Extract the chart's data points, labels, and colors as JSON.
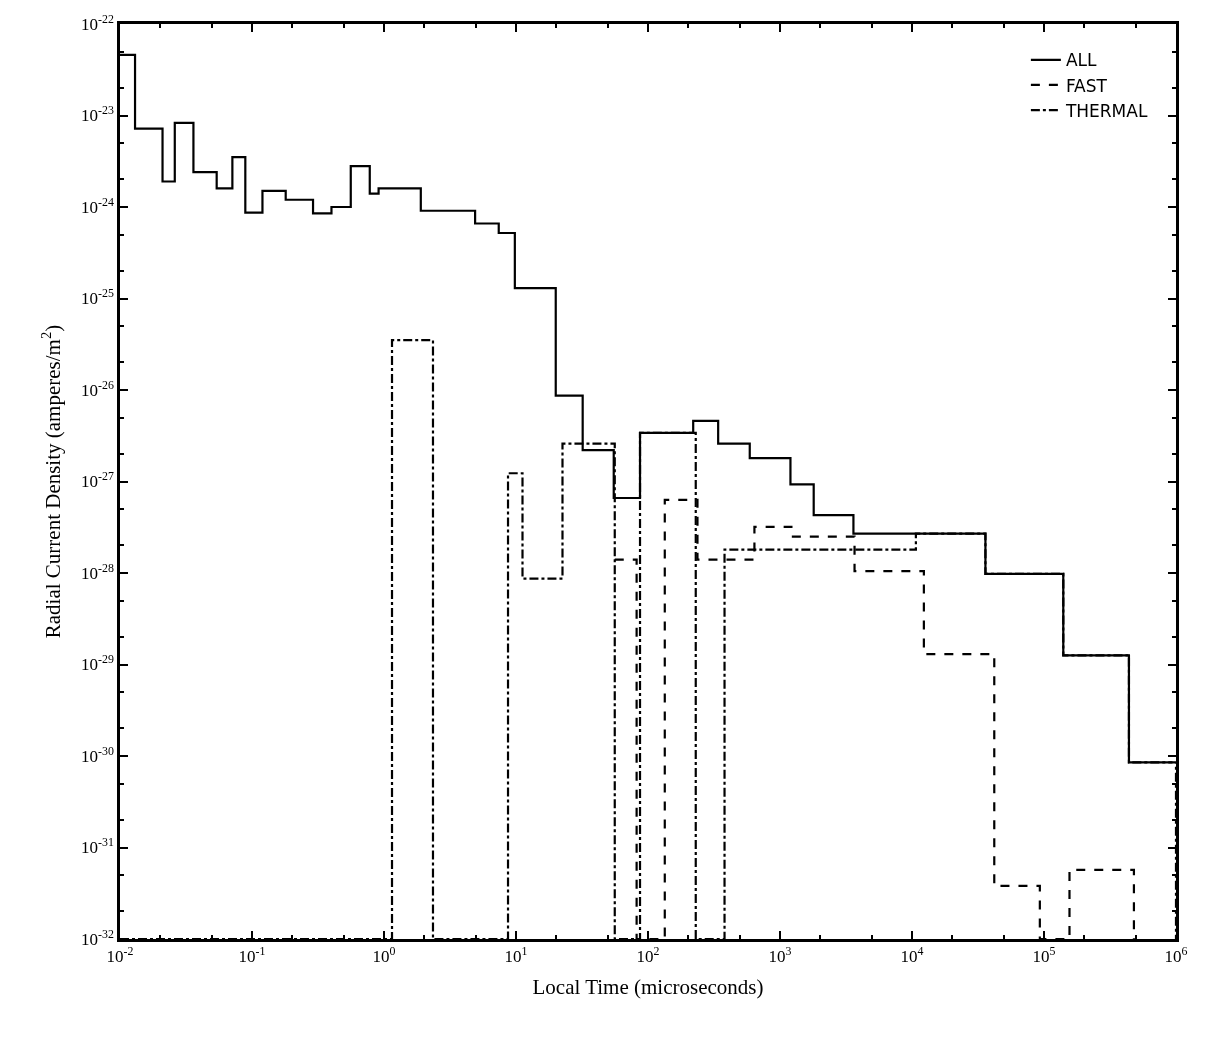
{
  "chart_data": {
    "type": "step",
    "xlabel": "Local Time (microseconds)",
    "ylabel": "Radial Current Density (amperes/m$^{2}$)",
    "log": "xy",
    "legend": "top right",
    "marker": "none",
    "xlim": [
      0.01,
      1000000
    ],
    "xticks": [
      {
        "value": 0.01,
        "label": "10$^{-2}$"
      },
      {
        "value": 0.1,
        "label": "10$^{-1}$"
      },
      {
        "value": 1,
        "label": "10$^{0}$"
      },
      {
        "value": 10,
        "label": "10$^{1}$"
      },
      {
        "value": 100,
        "label": "10$^{2}$"
      },
      {
        "value": 1000,
        "label": "10$^{3}$"
      },
      {
        "value": 10000,
        "label": "10$^{4}$"
      },
      {
        "value": 100000,
        "label": "10$^{5}$"
      },
      {
        "value": 1000000,
        "label": "10$^{6}$"
      }
    ],
    "ylim": [
      1e-32,
      1e-22
    ],
    "yticks": [
      {
        "value": 1e-32,
        "label": "10$^{-32}$"
      },
      {
        "value": 1e-31,
        "label": "10$^{-31}$"
      },
      {
        "value": 1e-30,
        "label": "10$^{-30}$"
      },
      {
        "value": 1e-29,
        "label": "10$^{-29}$"
      },
      {
        "value": 1e-28,
        "label": "10$^{-28}$"
      },
      {
        "value": 1e-27,
        "label": "10$^{-27}$"
      },
      {
        "value": 1e-26,
        "label": "10$^{-26}$"
      },
      {
        "value": 1e-25,
        "label": "10$^{-25}$"
      },
      {
        "value": 1e-24,
        "label": "10$^{-24}$"
      },
      {
        "value": 1e-23,
        "label": "10$^{-23}$"
      },
      {
        "value": 1e-22,
        "label": "10$^{-22}$"
      }
    ],
    "series": [
      {
        "name": "ALL",
        "color": "#000000",
        "line_style": "solid",
        "x": [
          0.01,
          0.013,
          0.021,
          0.026,
          0.036,
          0.054,
          0.071,
          0.089,
          0.12,
          0.18,
          0.29,
          0.4,
          0.56,
          0.78,
          0.91,
          1.9,
          4.9,
          7.4,
          9.8,
          20,
          32,
          55,
          87,
          220,
          340,
          590,
          1200,
          1800,
          3600,
          36000,
          140000,
          440000,
          940000
        ],
        "values": [
          4.6e-23,
          7.2e-24,
          1.9e-24,
          8.3e-24,
          2.4e-24,
          1.6e-24,
          3.5e-24,
          8.7e-25,
          1.5e-24,
          1.2e-24,
          8.5e-25,
          1e-24,
          2.8e-24,
          1.4e-24,
          1.6e-24,
          9.1e-25,
          6.6e-25,
          5.2e-25,
          1.3e-25,
          8.7e-27,
          2.2e-27,
          6.6e-28,
          3.4e-27,
          4.6e-27,
          2.6e-27,
          1.8e-27,
          9.3e-28,
          4.3e-28,
          2.7e-28,
          9.8e-29,
          1.26e-29,
          8.5e-31,
          8.5e-31
        ]
      },
      {
        "name": "FAST",
        "color": "#000000",
        "line_style": "dashed",
        "x": [
          56,
          82,
          134,
          237,
          640,
          1220,
          3670,
          12300,
          42000,
          93000,
          156000,
          480000
        ],
        "values": [
          1.4e-28,
          1e-32,
          6.3e-28,
          1.4e-28,
          3.2e-28,
          2.5e-28,
          1.05e-28,
          1.3e-29,
          3.8e-32,
          1e-32,
          5.7e-32,
          1e-32
        ]
      },
      {
        "name": "THERMAL",
        "color": "#000000",
        "line_style": "dashdot",
        "x": [
          0.01,
          1.15,
          2.35,
          8.7,
          11.2,
          22.5,
          56,
          87,
          230,
          380,
          10700,
          36000,
          140000,
          440000,
          1000000
        ],
        "values": [
          1e-32,
          3.5e-26,
          1e-32,
          1.23e-27,
          8.7e-29,
          2.6e-27,
          1e-32,
          3.4e-27,
          1e-32,
          1.8e-28,
          2.7e-28,
          9.8e-29,
          1.26e-29,
          8.5e-31,
          1e-32
        ]
      }
    ]
  }
}
